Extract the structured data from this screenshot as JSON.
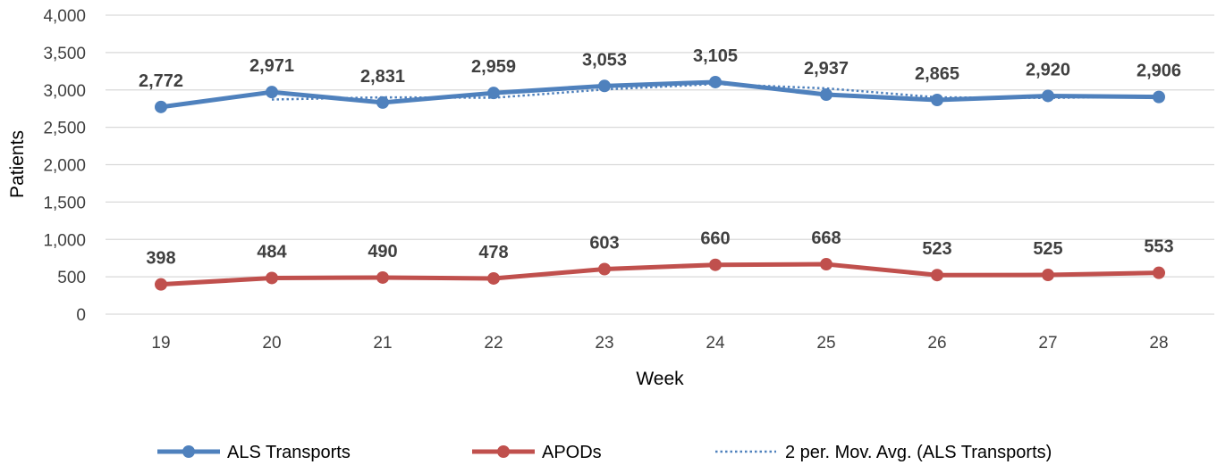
{
  "chart_data": {
    "type": "line",
    "title": "",
    "xlabel": "Week",
    "ylabel": "Patients",
    "categories": [
      "19",
      "20",
      "21",
      "22",
      "23",
      "24",
      "25",
      "26",
      "27",
      "28"
    ],
    "ylim": [
      0,
      4000
    ],
    "yticks": [
      0,
      500,
      1000,
      1500,
      2000,
      2500,
      3000,
      3500,
      4000
    ],
    "ytick_labels": [
      "0",
      "500",
      "1,000",
      "1,500",
      "2,000",
      "2,500",
      "3,000",
      "3,500",
      "4,000"
    ],
    "grid": true,
    "legend_position": "bottom",
    "series": [
      {
        "name": "ALS Transports",
        "color": "#4f81bd",
        "values": [
          2772,
          2971,
          2831,
          2959,
          3053,
          3105,
          2937,
          2865,
          2920,
          2906
        ],
        "labels": [
          "2,772",
          "2,971",
          "2,831",
          "2,959",
          "3,053",
          "3,105",
          "2,937",
          "2,865",
          "2,920",
          "2,906"
        ]
      },
      {
        "name": "APODs",
        "color": "#c0504d",
        "values": [
          398,
          484,
          490,
          478,
          603,
          660,
          668,
          523,
          525,
          553
        ],
        "labels": [
          "398",
          "484",
          "490",
          "478",
          "603",
          "660",
          "668",
          "523",
          "525",
          "553"
        ]
      }
    ],
    "trendline": {
      "name": "2 per. Mov. Avg. (ALS Transports)",
      "color": "#4f81bd",
      "style": "dotted",
      "period": 2
    }
  }
}
